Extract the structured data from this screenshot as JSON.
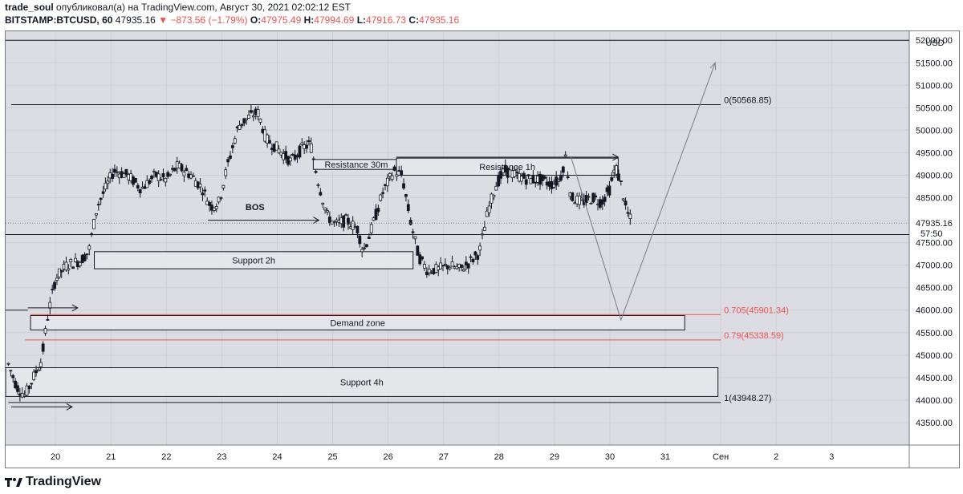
{
  "header": {
    "author": "trade_soul",
    "published_text": "опубликовал(а) на TradingView.com, Август 30, 2021 02:02:12 EST",
    "symbol": "BITSTAMP:BTCUSD, 60",
    "last": "47935.16",
    "change": "−873.56 (−1.79%)",
    "o_label": "O:",
    "o_value": "47975.49",
    "h_label": "H:",
    "h_value": "47994.69",
    "l_label": "L:",
    "l_value": "47916.73",
    "c_label": "C:",
    "c_value": "47935.16"
  },
  "footer": {
    "brand": "TradingView"
  },
  "colors": {
    "candle": "#131722",
    "fib": "#ef5350",
    "zone_fill": "#e6e7eb",
    "bg_plot": "#dcdde2"
  },
  "chart_data": {
    "type": "candlestick",
    "currency": "USD",
    "y_ticks": [
      43500,
      44000,
      44500,
      45000,
      45500,
      46000,
      46500,
      47000,
      47500,
      48000,
      48500,
      49000,
      49500,
      50000,
      50500,
      51000,
      51500,
      52000
    ],
    "y_tick_labels": [
      "43500.00",
      "44000.00",
      "44500.00",
      "45000.00",
      "45500.00",
      "46000.00",
      "46500.00",
      "47000.00",
      "47500.00",
      "48000.00",
      "48500.00",
      "49000.00",
      "49500.00",
      "50000.00",
      "50500.00",
      "51000.00",
      "51500.00",
      "52000.00"
    ],
    "ylim": [
      43000,
      52200
    ],
    "x_ticks": [
      "20",
      "21",
      "22",
      "23",
      "24",
      "25",
      "26",
      "27",
      "28",
      "29",
      "30",
      "31",
      "Сен",
      "2",
      "3"
    ],
    "x_tick_days": [
      20,
      21,
      22,
      23,
      24,
      25,
      26,
      27,
      28,
      29,
      30,
      31,
      32,
      33,
      34
    ],
    "xlim": [
      19.1,
      35.4
    ],
    "last_price_label": "47935.16",
    "countdown_label": "57:50",
    "path": [
      [
        19.15,
        44800
      ],
      [
        19.3,
        44300
      ],
      [
        19.45,
        44100
      ],
      [
        19.6,
        44500
      ],
      [
        19.75,
        44900
      ],
      [
        19.85,
        45800
      ],
      [
        20.0,
        46700
      ],
      [
        20.2,
        47000
      ],
      [
        20.45,
        47100
      ],
      [
        20.6,
        47300
      ],
      [
        20.75,
        48300
      ],
      [
        20.9,
        48700
      ],
      [
        21.05,
        49100
      ],
      [
        21.3,
        49000
      ],
      [
        21.55,
        48700
      ],
      [
        21.8,
        49000
      ],
      [
        22.0,
        48900
      ],
      [
        22.2,
        49200
      ],
      [
        22.45,
        49000
      ],
      [
        22.65,
        48700
      ],
      [
        22.8,
        48300
      ],
      [
        22.95,
        48400
      ],
      [
        23.1,
        49200
      ],
      [
        23.3,
        50100
      ],
      [
        23.5,
        50300
      ],
      [
        23.65,
        50400
      ],
      [
        23.8,
        49800
      ],
      [
        24.0,
        49600
      ],
      [
        24.25,
        49300
      ],
      [
        24.45,
        49600
      ],
      [
        24.6,
        49700
      ],
      [
        24.75,
        48800
      ],
      [
        24.9,
        48100
      ],
      [
        25.05,
        47900
      ],
      [
        25.25,
        48000
      ],
      [
        25.45,
        47800
      ],
      [
        25.55,
        47300
      ],
      [
        25.7,
        47800
      ],
      [
        25.9,
        48600
      ],
      [
        26.1,
        49100
      ],
      [
        26.25,
        49000
      ],
      [
        26.4,
        48000
      ],
      [
        26.55,
        47200
      ],
      [
        26.7,
        46900
      ],
      [
        26.9,
        46900
      ],
      [
        27.1,
        47000
      ],
      [
        27.3,
        46900
      ],
      [
        27.5,
        47100
      ],
      [
        27.65,
        47300
      ],
      [
        27.8,
        48200
      ],
      [
        27.95,
        48800
      ],
      [
        28.1,
        49100
      ],
      [
        28.3,
        49000
      ],
      [
        28.55,
        48900
      ],
      [
        28.75,
        48900
      ],
      [
        28.95,
        48800
      ],
      [
        29.1,
        48900
      ],
      [
        29.2,
        49400
      ],
      [
        29.3,
        48500
      ],
      [
        29.5,
        48400
      ],
      [
        29.7,
        48500
      ],
      [
        29.85,
        48400
      ],
      [
        30.0,
        48700
      ],
      [
        30.1,
        49200
      ],
      [
        30.2,
        48800
      ],
      [
        30.3,
        48200
      ],
      [
        30.4,
        47935
      ]
    ],
    "hlines": [
      {
        "price": 52000
      },
      {
        "price": 50568.85,
        "label": "0(50568.85)",
        "x0": 19.2,
        "x1": 32.0
      },
      {
        "price": 47680
      },
      {
        "price": 43948.27,
        "label": "1(43948.27)",
        "x0": 19.15,
        "x1": 32.0
      },
      {
        "price": 46000,
        "x0": 19.1,
        "x1": 19.5
      }
    ],
    "fib_lines": [
      {
        "price": 45901.34,
        "label": "0.705(45901.34)",
        "x0": 19.55,
        "x1": 32.0
      },
      {
        "price": 45338.59,
        "label": "0.79(45338.59)",
        "x0": 19.45,
        "x1": 32.0
      }
    ],
    "zones": [
      {
        "label": "Resistance 30m",
        "x0": 24.65,
        "x1": 26.2,
        "p_top": 49350,
        "p_bot": 49130
      },
      {
        "label": "Resistance 1h",
        "x0": 26.15,
        "x1": 30.15,
        "p_top": 49380,
        "p_bot": 49000
      },
      {
        "label": "Support 2h",
        "x0": 20.7,
        "x1": 26.45,
        "p_top": 47300,
        "p_bot": 46920
      },
      {
        "label": "Demand zone",
        "x0": 19.55,
        "x1": 31.35,
        "p_top": 45880,
        "p_bot": 45560
      },
      {
        "label": "Support 4h",
        "x0": 19.1,
        "x1": 31.95,
        "p_top": 44720,
        "p_bot": 44080
      }
    ],
    "annotations": [
      {
        "text": "BOS",
        "x": 23.6,
        "price": 48220
      }
    ],
    "arrows": [
      {
        "x0": 22.75,
        "p0": 48000,
        "x1": 24.75,
        "p1": 48000
      },
      {
        "x0": 19.5,
        "p0": 46050,
        "x1": 20.4,
        "p1": 46050
      },
      {
        "x0": 19.2,
        "p0": 43850,
        "x1": 20.3,
        "p1": 43850
      },
      {
        "x0": 26.15,
        "p0": 49400,
        "x1": 30.15,
        "p1": 49400
      }
    ],
    "projection": [
      [
        29.3,
        49400
      ],
      [
        30.2,
        45780
      ],
      [
        31.9,
        51500
      ]
    ]
  }
}
